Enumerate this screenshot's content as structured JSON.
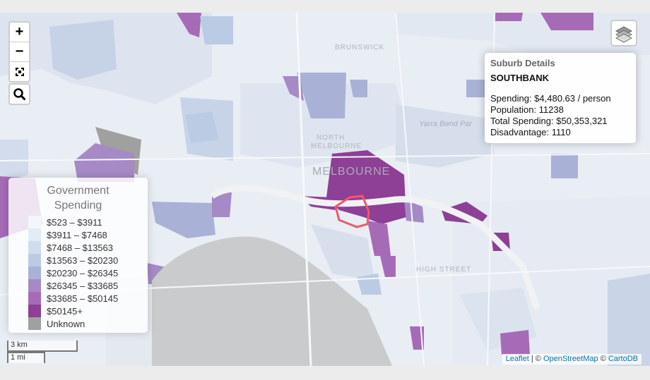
{
  "controls": {
    "zoom_in": "+",
    "zoom_out": "−",
    "fullscreen": "⤢"
  },
  "places": {
    "brunswick": "BRUNSWICK",
    "north_melbourne_1": "NORTH",
    "north_melbourne_2": "MELBOURNE",
    "melbourne": "MELBOURNE",
    "yarra_bend": "Yarra Bend Par",
    "high_street": "HIGH STREET"
  },
  "info_panel": {
    "heading": "Suburb Details",
    "suburb": "SOUTHBANK",
    "spending": "Spending: $4,480.63 / person",
    "population": "Population: 11238",
    "total": "Total Spending: $50,353,321",
    "disadvantage": "Disadvantage: 1110"
  },
  "legend": {
    "title_line1": "Government",
    "title_line2": "Spending",
    "items": [
      {
        "label": "$523 – $3911",
        "color": "#f3f6fb"
      },
      {
        "label": "$3911 – $7468",
        "color": "#e3ecf6"
      },
      {
        "label": "$7468 – $13563",
        "color": "#d0ddee"
      },
      {
        "label": "$13563 – $20230",
        "color": "#bccbe4"
      },
      {
        "label": "$20230 – $26345",
        "color": "#a9b1d7"
      },
      {
        "label": "$26345 – $33685",
        "color": "#a58ac6"
      },
      {
        "label": "$33685 – $50145",
        "color": "#a66bb7"
      },
      {
        "label": "$50145+",
        "color": "#8e3f96"
      },
      {
        "label": "Unknown",
        "color": "#a0a0a0"
      }
    ]
  },
  "scale": {
    "km": "3 km",
    "mi": "1 mi"
  },
  "attribution": {
    "leaflet": "Leaflet",
    "sep": " | © ",
    "osm": "OpenStreetMap",
    "sep2": " © ",
    "carto": "CartoDB"
  }
}
